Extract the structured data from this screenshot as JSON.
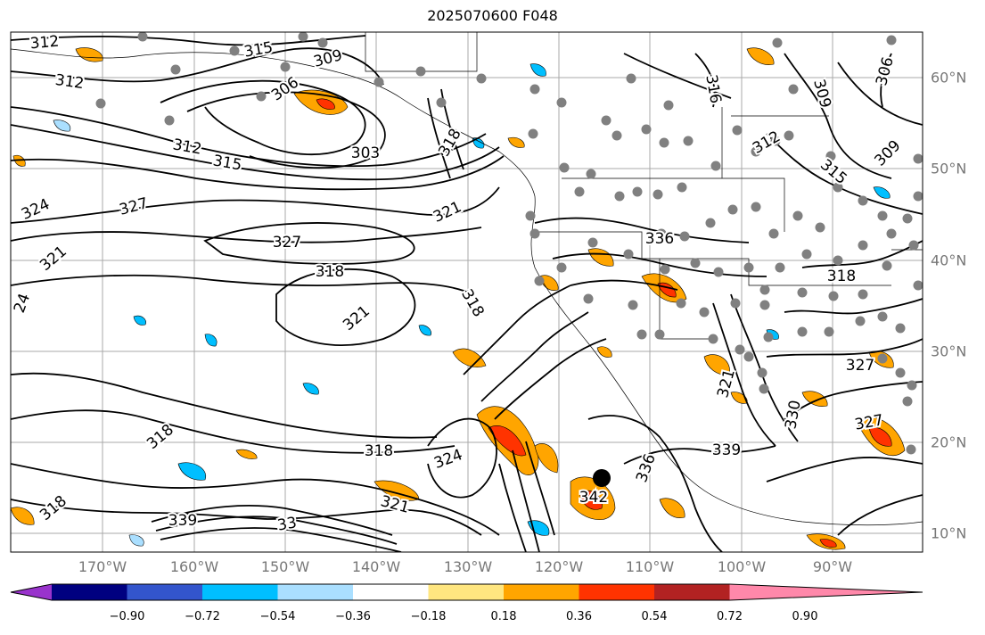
{
  "title": "2025070600 F048",
  "longitude_labels": [
    "170°W",
    "160°W",
    "150°W",
    "140°W",
    "130°W",
    "120°W",
    "110°W",
    "100°W",
    "90°W"
  ],
  "latitude_labels": [
    "60°N",
    "50°N",
    "40°N",
    "30°N",
    "20°N",
    "10°N"
  ],
  "colorbar": {
    "ticks": [
      "−0.90",
      "−0.72",
      "−0.54",
      "−0.36",
      "−0.18",
      "0.18",
      "0.36",
      "0.54",
      "0.72",
      "0.90"
    ],
    "colors": [
      "#9933cc",
      "#000080",
      "#3355cc",
      "#00bfff",
      "#aadfff",
      "#ffffff",
      "#ffe680",
      "#ffa500",
      "#ff3300",
      "#b22222",
      "#ff88aa"
    ]
  },
  "contour_labels": [
    "312",
    "315",
    "309",
    "306",
    "312",
    "303",
    "312",
    "315",
    "318",
    "321",
    "324",
    "327",
    "327",
    "321",
    "318",
    "318",
    "321",
    "318",
    "318",
    "318",
    "324",
    "321",
    "339",
    "33",
    "342",
    "336",
    "336",
    "339",
    "330",
    "327",
    "327",
    "312",
    "309",
    "309",
    "306",
    "316",
    "315",
    "318",
    "321",
    "24"
  ],
  "colors": {
    "contour": "#000000",
    "grid": "#a0a0a0",
    "stations": "#808080",
    "marker": "#000000"
  }
}
